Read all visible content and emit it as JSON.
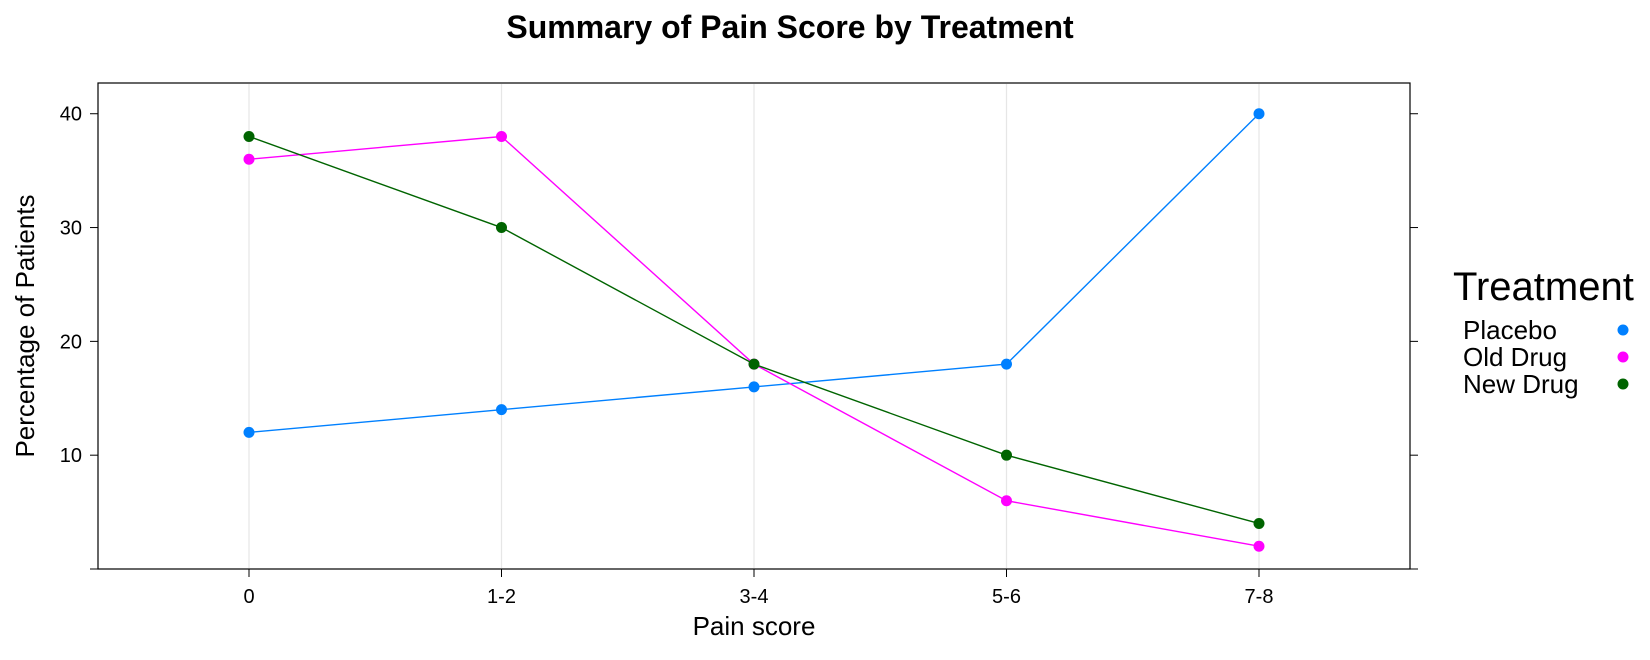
{
  "chart_data": {
    "type": "line",
    "title": "Summary of Pain Score by Treatment",
    "xlabel": "Pain score",
    "ylabel": "Percentage of Patients",
    "categories": [
      "0",
      "1-2",
      "3-4",
      "5-6",
      "7-8"
    ],
    "ylim": [
      0,
      42.7
    ],
    "yticks": [
      0,
      10,
      20,
      30,
      40
    ],
    "ytick_labels": [
      "",
      "10",
      "20",
      "30",
      "40"
    ],
    "grid": "vertical",
    "legend": {
      "title": "Treatment",
      "position": "right"
    },
    "series": [
      {
        "name": "Placebo",
        "color": "#0080ff",
        "values": [
          12,
          14,
          16,
          18,
          40
        ]
      },
      {
        "name": "Old Drug",
        "color": "#ff00ff",
        "values": [
          36,
          38,
          18,
          6,
          2
        ]
      },
      {
        "name": "New Drug",
        "color": "#006400",
        "values": [
          38,
          30,
          18,
          10,
          4
        ]
      }
    ]
  }
}
